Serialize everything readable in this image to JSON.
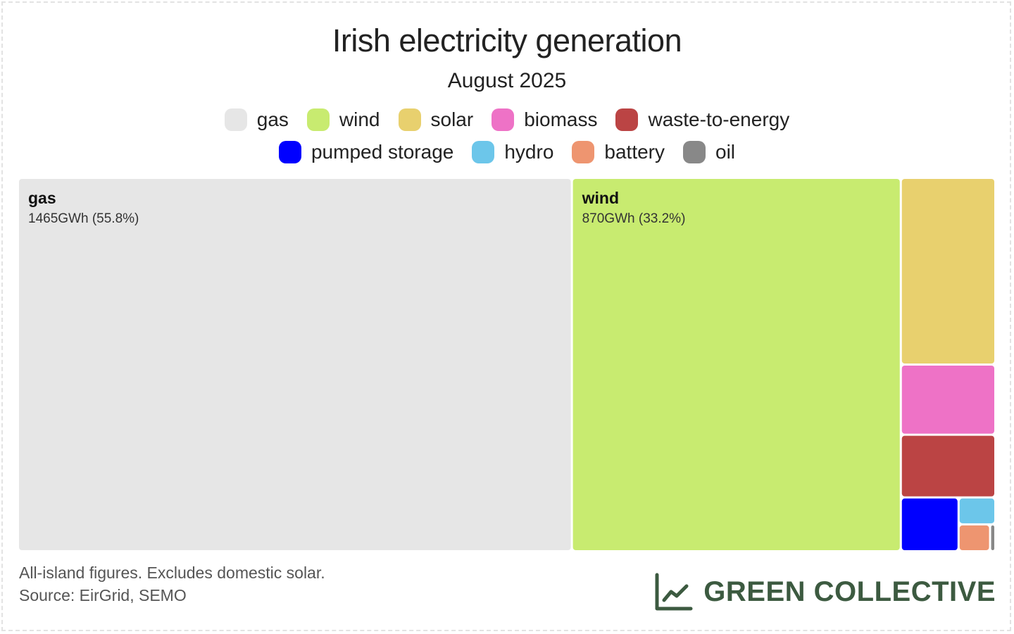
{
  "title": "Irish electricity generation",
  "subtitle": "August 2025",
  "legend": [
    {
      "name": "gas",
      "color": "#e6e6e6"
    },
    {
      "name": "wind",
      "color": "#c8eb70"
    },
    {
      "name": "solar",
      "color": "#e8d06e"
    },
    {
      "name": "biomass",
      "color": "#ee72c6"
    },
    {
      "name": "waste-to-energy",
      "color": "#bb4444"
    },
    {
      "name": "pumped storage",
      "color": "#0000ff"
    },
    {
      "name": "hydro",
      "color": "#6cc6ea"
    },
    {
      "name": "battery",
      "color": "#ee9570"
    },
    {
      "name": "oil",
      "color": "#888888"
    }
  ],
  "chart_data": {
    "type": "treemap",
    "title": "Irish electricity generation",
    "subtitle": "August 2025",
    "unit": "GWh",
    "items": [
      {
        "name": "gas",
        "value": 1465,
        "share": 55.8,
        "label": "gas",
        "value_label": "1465GWh (55.8%)",
        "color": "#e6e6e6"
      },
      {
        "name": "wind",
        "value": 870,
        "share": 33.2,
        "label": "wind",
        "value_label": "870GWh (33.2%)",
        "color": "#c8eb70"
      },
      {
        "name": "solar",
        "value": 125,
        "color": "#e8d06e"
      },
      {
        "name": "biomass",
        "value": 47,
        "color": "#ee72c6"
      },
      {
        "name": "waste-to-energy",
        "value": 42,
        "color": "#bb4444"
      },
      {
        "name": "pumped storage",
        "value": 22,
        "color": "#0000ff"
      },
      {
        "name": "hydro",
        "value": 7,
        "color": "#6cc6ea"
      },
      {
        "name": "battery",
        "value": 6,
        "color": "#ee9570"
      },
      {
        "name": "oil",
        "value": 1,
        "color": "#888888"
      }
    ]
  },
  "footnotes": {
    "line1": "All-island figures. Excludes domestic solar.",
    "line2": "Source: EirGrid, SEMO"
  },
  "brand": {
    "name": "GREEN COLLECTIVE",
    "icon": "line-chart-icon",
    "color": "#3c5a40"
  }
}
